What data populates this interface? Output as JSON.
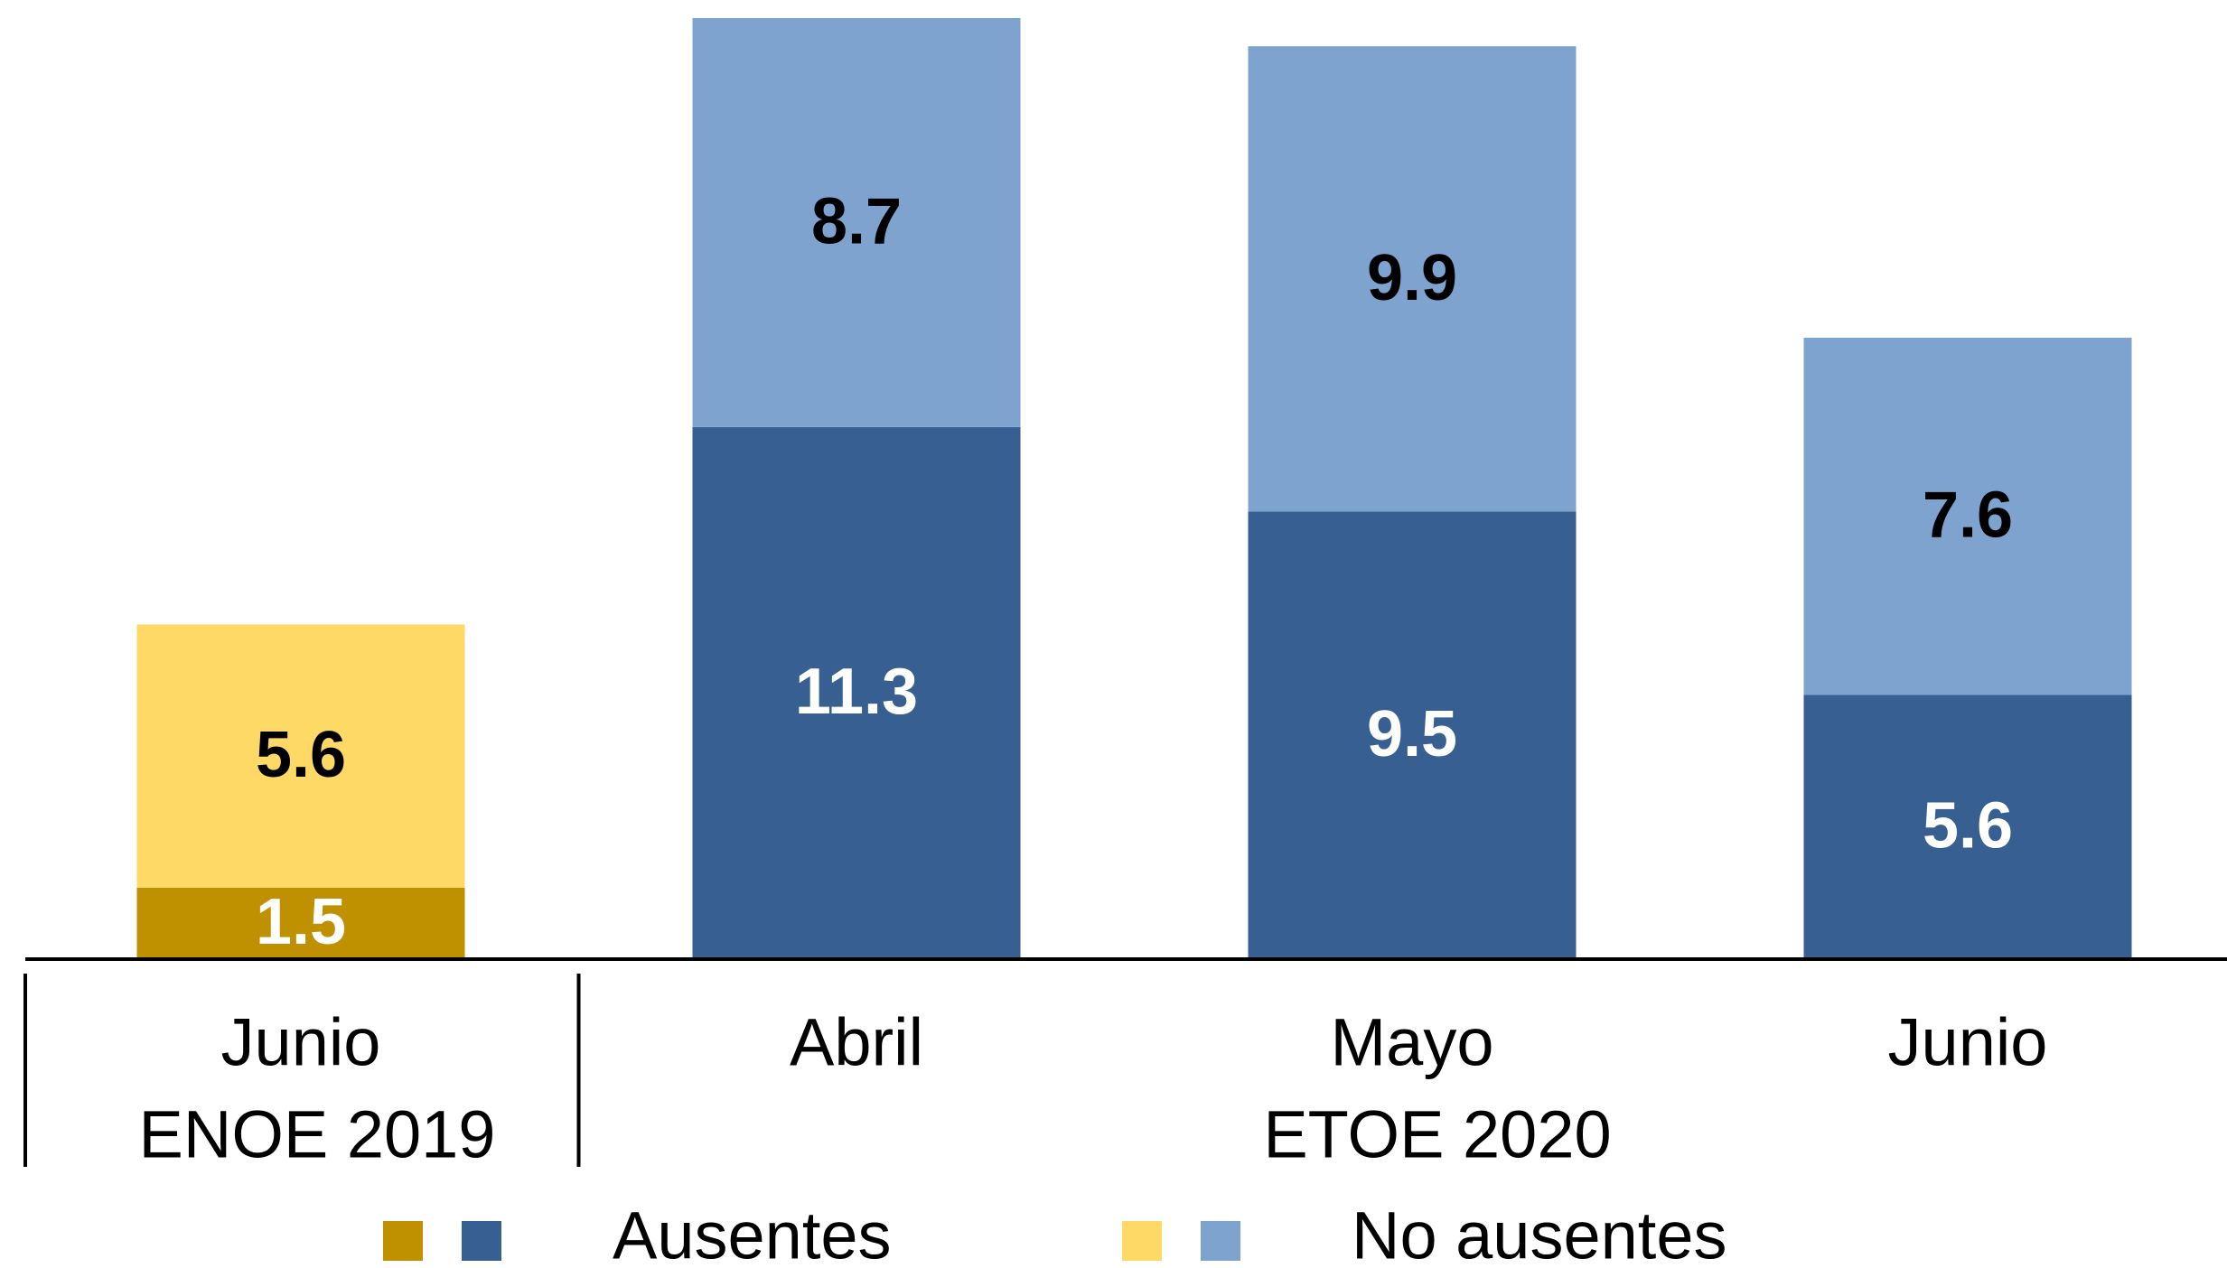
{
  "chart_data": {
    "type": "stacked-bar",
    "categories": [
      "Junio",
      "Abril",
      "Mayo",
      "Junio"
    ],
    "groups": [
      {
        "name": "ENOE 2019",
        "count": 1
      },
      {
        "name": "ETOE 2020",
        "count": 3
      }
    ],
    "series": [
      {
        "name": "Ausentes",
        "colors": [
          "#bf9000",
          "#375f92",
          "#375f92",
          "#375f92"
        ],
        "label_color": "#ffffff",
        "values": [
          1.5,
          11.3,
          9.5,
          5.6
        ]
      },
      {
        "name": "No ausentes",
        "colors": [
          "#ffd966",
          "#7ea3cf",
          "#7ea3cf",
          "#7ea3cf"
        ],
        "label_color": "#000000",
        "values": [
          5.6,
          8.7,
          9.9,
          7.6
        ]
      }
    ],
    "legend": "bottom"
  }
}
